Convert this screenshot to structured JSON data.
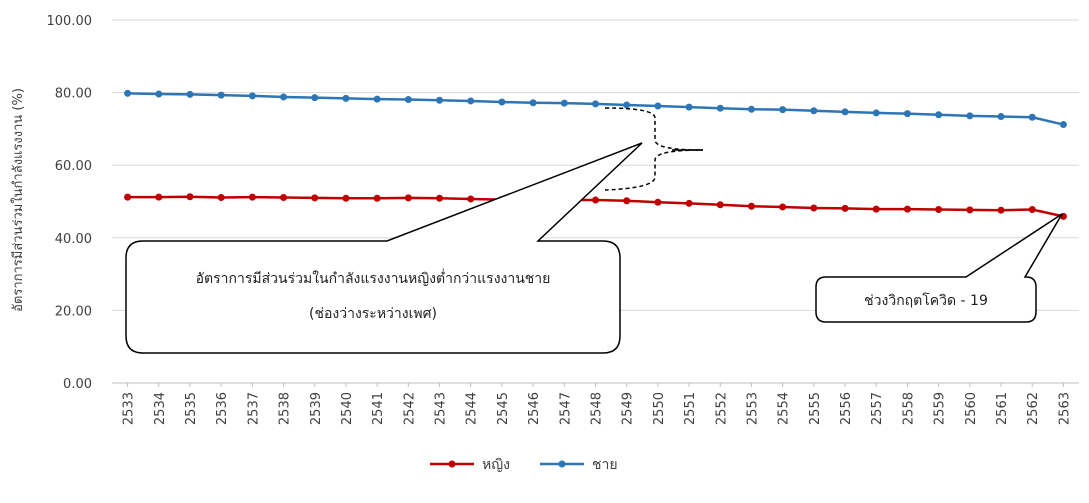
{
  "chart_data": {
    "type": "line",
    "title": "",
    "xlabel": "",
    "ylabel": "อัตราการมีส่วนร่วมในกำลังแรงงาน (%)",
    "ylim": [
      0,
      100
    ],
    "yticks": [
      "0.00",
      "20.00",
      "40.00",
      "60.00",
      "80.00",
      "100.00"
    ],
    "grid": true,
    "legend_position": "bottom",
    "categories": [
      "2533",
      "2534",
      "2535",
      "2536",
      "2537",
      "2538",
      "2539",
      "2540",
      "2541",
      "2542",
      "2543",
      "2544",
      "2545",
      "2546",
      "2547",
      "2548",
      "2549",
      "2550",
      "2551",
      "2552",
      "2553",
      "2554",
      "2555",
      "2556",
      "2557",
      "2558",
      "2559",
      "2560",
      "2561",
      "2562",
      "2563"
    ],
    "series": [
      {
        "name": "หญิง",
        "color": "#c00000",
        "values": [
          51.2,
          51.2,
          51.3,
          51.1,
          51.2,
          51.1,
          51.0,
          50.9,
          50.9,
          51.0,
          50.9,
          50.7,
          50.5,
          50.4,
          50.4,
          50.4,
          50.2,
          49.8,
          49.5,
          49.1,
          48.7,
          48.5,
          48.2,
          48.1,
          47.9,
          47.9,
          47.8,
          47.7,
          47.6,
          47.8,
          45.9
        ]
      },
      {
        "name": "ชาย",
        "color": "#2e75b6",
        "values": [
          79.8,
          79.6,
          79.5,
          79.3,
          79.1,
          78.8,
          78.6,
          78.4,
          78.2,
          78.1,
          77.9,
          77.7,
          77.4,
          77.2,
          77.1,
          76.9,
          76.6,
          76.3,
          76.0,
          75.7,
          75.4,
          75.3,
          75.0,
          74.7,
          74.4,
          74.2,
          73.9,
          73.6,
          73.4,
          73.2,
          71.2
        ]
      }
    ],
    "annotations": {
      "gap_line1": "อัตราการมีส่วนร่วมในกำลังแรงงานหญิงต่ำกว่าแรงงานชาย",
      "gap_line2": "(ช่องว่างระหว่างเพศ)",
      "covid": "ช่วงวิกฤตโควิด - 19"
    }
  }
}
